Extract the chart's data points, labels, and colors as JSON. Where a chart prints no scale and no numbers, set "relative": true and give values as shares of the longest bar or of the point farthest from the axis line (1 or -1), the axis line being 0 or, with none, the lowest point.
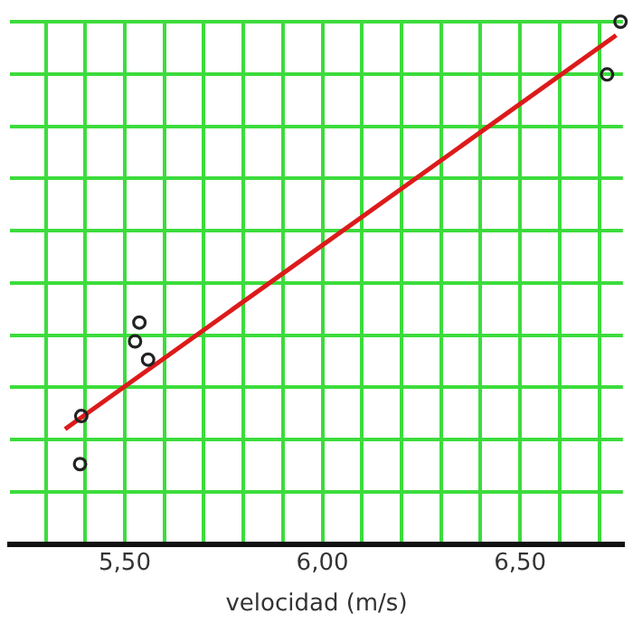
{
  "chart_data": {
    "type": "scatter",
    "xlabel": "velocidad (m/s)",
    "relative": true,
    "grid": true,
    "legend": false,
    "marker": "circle",
    "xlim": [
      5.21,
      6.76
    ],
    "xticks": [
      {
        "value": 5.3,
        "label": null
      },
      {
        "value": 5.4,
        "label": null
      },
      {
        "value": 5.5,
        "label": "5,50"
      },
      {
        "value": 5.6,
        "label": null
      },
      {
        "value": 5.7,
        "label": null
      },
      {
        "value": 5.8,
        "label": null
      },
      {
        "value": 5.9,
        "label": null
      },
      {
        "value": 6.0,
        "label": "6,00"
      },
      {
        "value": 6.1,
        "label": null
      },
      {
        "value": 6.2,
        "label": null
      },
      {
        "value": 6.3,
        "label": null
      },
      {
        "value": 6.4,
        "label": null
      },
      {
        "value": 6.5,
        "label": "6,50"
      },
      {
        "value": 6.6,
        "label": null
      },
      {
        "value": 6.7,
        "label": null
      }
    ],
    "series": [
      {
        "type": "scatter",
        "color": "#222222",
        "x": [
          5.39,
          5.387,
          5.537,
          5.526,
          5.559,
          6.72,
          6.754
        ],
        "values": [
          0.245,
          0.153,
          0.424,
          0.388,
          0.353,
          0.899,
          1
        ]
      },
      {
        "type": "line",
        "color": "#dd1a1a",
        "marker": "none",
        "line_style": "solid",
        "x": [
          5.349,
          6.743
        ],
        "values": [
          0.22,
          0.974
        ]
      }
    ]
  }
}
